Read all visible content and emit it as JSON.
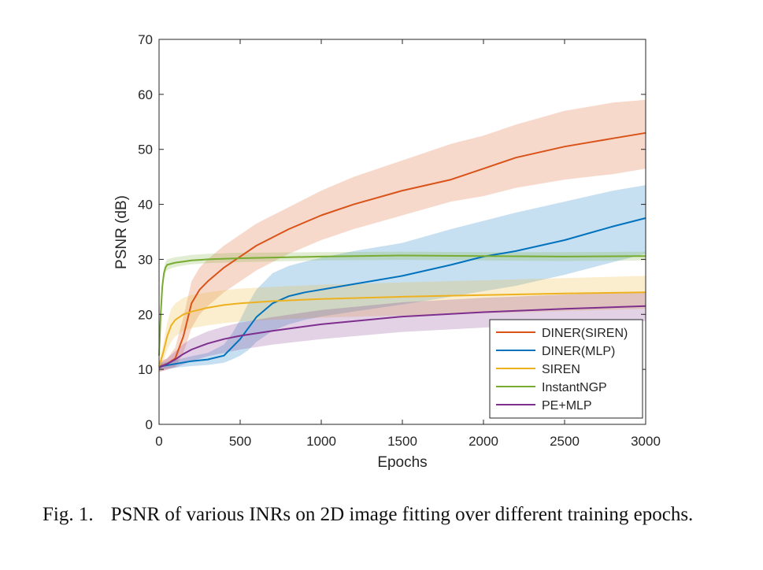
{
  "chart_data": {
    "type": "line",
    "xlabel": "Epochs",
    "ylabel": "PSNR (dB)",
    "xlim": [
      0,
      3000
    ],
    "ylim": [
      0,
      70
    ],
    "xticks": [
      0,
      500,
      1000,
      1500,
      2000,
      2500,
      3000
    ],
    "yticks": [
      0,
      10,
      20,
      30,
      40,
      50,
      60,
      70
    ],
    "grid": false,
    "legend_position": "bottom-right",
    "series": [
      {
        "name": "DINER(SIREN)",
        "color": "#D95319",
        "x": [
          0,
          50,
          100,
          150,
          200,
          250,
          300,
          400,
          500,
          600,
          700,
          800,
          1000,
          1200,
          1500,
          1800,
          2000,
          2200,
          2500,
          2800,
          3000
        ],
        "y": [
          10.5,
          11,
          12,
          16,
          22,
          24.5,
          26,
          28.5,
          30.5,
          32.5,
          34,
          35.5,
          38,
          40,
          42.5,
          44.5,
          46.5,
          48.5,
          50.5,
          52,
          53
        ],
        "lower": [
          9.5,
          10,
          10.5,
          13,
          17.5,
          20,
          21.5,
          24,
          26,
          28,
          29.5,
          31,
          33.5,
          35.5,
          38,
          40.5,
          41.5,
          43,
          44.5,
          45.5,
          46.5
        ],
        "upper": [
          11.5,
          12,
          14,
          19.5,
          26,
          28.5,
          30,
          32.5,
          34.5,
          36.5,
          38,
          39.5,
          42.5,
          45,
          48,
          51,
          52.5,
          54.5,
          57,
          58.5,
          59
        ]
      },
      {
        "name": "DINER(MLP)",
        "color": "#0072BD",
        "x": [
          0,
          100,
          200,
          300,
          400,
          450,
          500,
          550,
          600,
          700,
          800,
          900,
          1000,
          1200,
          1500,
          1800,
          2000,
          2200,
          2500,
          2800,
          3000
        ],
        "y": [
          10.5,
          11,
          11.5,
          11.8,
          12.5,
          14,
          15.5,
          17.5,
          19.5,
          22,
          23.3,
          24,
          24.5,
          25.5,
          27,
          29,
          30.5,
          31.5,
          33.5,
          36,
          37.5
        ],
        "lower": [
          10,
          10.3,
          10.6,
          10.8,
          11.2,
          11.8,
          12.5,
          13.5,
          15,
          17,
          18.2,
          19,
          19.6,
          20.5,
          21.8,
          23.2,
          24.2,
          25.2,
          27.2,
          29.5,
          31
        ],
        "upper": [
          11,
          11.7,
          12.4,
          13,
          14.5,
          16.5,
          19,
          22,
          24.5,
          27.5,
          28.8,
          29.6,
          30.3,
          31.5,
          33,
          35.5,
          37,
          38.5,
          40.5,
          42.5,
          43.5
        ]
      },
      {
        "name": "SIREN",
        "color": "#EDB120",
        "x": [
          0,
          25,
          50,
          75,
          100,
          150,
          200,
          300,
          400,
          500,
          700,
          1000,
          1500,
          2000,
          2500,
          3000
        ],
        "y": [
          10.5,
          13,
          16,
          18,
          19,
          20,
          20.5,
          21.2,
          21.7,
          22,
          22.4,
          22.8,
          23.2,
          23.5,
          23.8,
          24
        ],
        "lower": [
          9.5,
          11.5,
          13.5,
          15,
          16,
          17,
          17.5,
          18,
          18.4,
          18.7,
          19,
          19.4,
          19.8,
          20.2,
          20.6,
          21
        ],
        "upper": [
          11.5,
          14.5,
          18.5,
          21,
          22,
          23,
          23.5,
          24,
          24.4,
          24.7,
          25,
          25.4,
          25.8,
          26.2,
          26.6,
          27
        ]
      },
      {
        "name": "InstantNGP",
        "color": "#77AC30",
        "x": [
          0,
          10,
          20,
          30,
          40,
          50,
          75,
          100,
          150,
          200,
          300,
          500,
          1000,
          1500,
          2000,
          2500,
          3000
        ],
        "y": [
          12.5,
          20,
          25,
          27.5,
          28.5,
          29,
          29.2,
          29.4,
          29.6,
          29.8,
          30,
          30.2,
          30.5,
          30.7,
          30.6,
          30.5,
          30.6
        ],
        "lower": [
          11.5,
          19,
          24,
          26.5,
          27.5,
          28,
          28.4,
          28.6,
          28.9,
          29.1,
          29.3,
          29.5,
          29.8,
          29.9,
          29.8,
          29.7,
          29.8
        ],
        "upper": [
          13.5,
          21,
          26,
          28.5,
          29.5,
          30,
          30.2,
          30.4,
          30.6,
          30.8,
          31,
          31.2,
          31.3,
          31.4,
          31.3,
          31.3,
          31.4
        ]
      },
      {
        "name": "PE+MLP",
        "color": "#7E2F8E",
        "x": [
          0,
          50,
          100,
          150,
          200,
          300,
          400,
          500,
          700,
          1000,
          1500,
          2000,
          2500,
          3000
        ],
        "y": [
          10.3,
          11,
          11.8,
          12.8,
          13.6,
          14.7,
          15.5,
          16.1,
          17,
          18.2,
          19.6,
          20.4,
          21,
          21.5
        ],
        "lower": [
          9.6,
          9.9,
          10.3,
          10.9,
          11.5,
          12.4,
          13,
          13.6,
          14.5,
          15.5,
          16.8,
          17.6,
          18.3,
          18.8
        ],
        "upper": [
          11,
          12,
          13.3,
          14.6,
          15.6,
          16.9,
          17.8,
          18.5,
          19.5,
          20.8,
          22.2,
          23,
          23.6,
          24
        ]
      }
    ]
  },
  "caption": {
    "figure_number": "Fig. 1.",
    "text": "PSNR of various INRs on 2D image fitting over different training epochs."
  }
}
